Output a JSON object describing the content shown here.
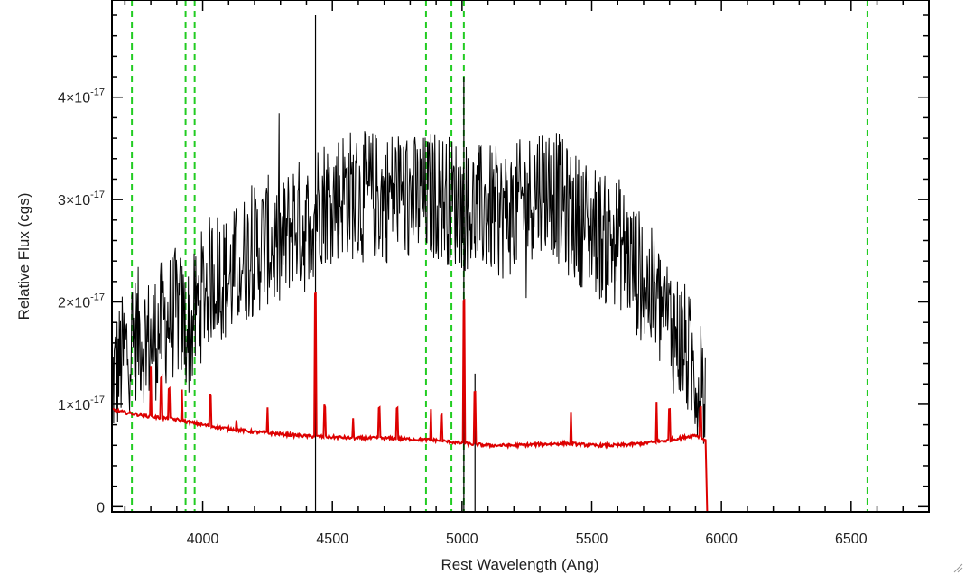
{
  "chart_data": {
    "type": "line",
    "xlabel": "Rest Wavelength (Ang)",
    "ylabel": "Relative Flux (cgs)",
    "xlim": [
      3650,
      6800
    ],
    "ylim": [
      -0.05,
      4.95
    ],
    "y_unit_exponent": -17,
    "x_ticks": [
      4000,
      4500,
      5000,
      5500,
      6000,
      6500
    ],
    "y_ticks": [
      {
        "value": 0,
        "mantissa": "0",
        "exponent": ""
      },
      {
        "value": 1,
        "mantissa": "1×10",
        "exponent": "-17"
      },
      {
        "value": 2,
        "mantissa": "2×10",
        "exponent": "-17"
      },
      {
        "value": 3,
        "mantissa": "3×10",
        "exponent": "-17"
      },
      {
        "value": 4,
        "mantissa": "4×10",
        "exponent": "-17"
      }
    ],
    "vertical_lines_x": [
      3727,
      3934,
      3969,
      4861,
      4959,
      5007,
      6563
    ],
    "vertical_line_color": "#22cc22",
    "series": [
      {
        "color": "#000000",
        "noise_amplitude": 0.65,
        "x": [
          3650,
          3700,
          3750,
          3800,
          3850,
          3900,
          3950,
          4000,
          4050,
          4100,
          4150,
          4200,
          4250,
          4300,
          4350,
          4400,
          4450,
          4500,
          4550,
          4600,
          4650,
          4700,
          4750,
          4800,
          4850,
          4900,
          4950,
          5000,
          5050,
          5100,
          5150,
          5200,
          5250,
          5300,
          5350,
          5400,
          5450,
          5500,
          5550,
          5600,
          5650,
          5700,
          5750,
          5800,
          5850,
          5900,
          5940
        ],
        "y": [
          1.2,
          1.5,
          1.7,
          1.6,
          1.8,
          1.9,
          1.7,
          2.1,
          2.3,
          2.2,
          2.4,
          2.5,
          2.6,
          2.5,
          2.8,
          2.7,
          3.0,
          3.0,
          3.1,
          3.0,
          3.05,
          3.0,
          3.1,
          3.0,
          3.0,
          3.05,
          3.0,
          2.95,
          2.9,
          2.9,
          2.85,
          2.9,
          3.0,
          3.15,
          3.1,
          2.9,
          2.8,
          2.75,
          2.6,
          2.6,
          2.4,
          2.2,
          2.0,
          1.8,
          1.6,
          1.3,
          1.1
        ]
      },
      {
        "color": "#dd0000",
        "x": [
          3650,
          3700,
          3800,
          3900,
          4000,
          4100,
          4200,
          4300,
          4400,
          4500,
          4600,
          4700,
          4800,
          4900,
          5000,
          5100,
          5200,
          5300,
          5400,
          5500,
          5600,
          5700,
          5800,
          5900,
          5940,
          5945,
          6800
        ],
        "y": [
          0.95,
          0.92,
          0.88,
          0.85,
          0.8,
          0.76,
          0.73,
          0.71,
          0.69,
          0.68,
          0.67,
          0.67,
          0.66,
          0.65,
          0.62,
          0.6,
          0.6,
          0.61,
          0.62,
          0.6,
          0.6,
          0.62,
          0.65,
          0.7,
          0.65,
          -0.05,
          -0.05
        ],
        "emission_lines": [
          [
            3800,
            0.5
          ],
          [
            3840,
            0.4
          ],
          [
            3870,
            0.3
          ],
          [
            3920,
            0.3
          ],
          [
            4030,
            0.3
          ],
          [
            4130,
            0.1
          ],
          [
            4250,
            0.25
          ],
          [
            4435,
            1.4
          ],
          [
            4470,
            0.3
          ],
          [
            4580,
            0.2
          ],
          [
            4680,
            0.3
          ],
          [
            4750,
            0.3
          ],
          [
            4880,
            0.3
          ],
          [
            4920,
            0.25
          ],
          [
            5007,
            1.4
          ],
          [
            5050,
            0.5
          ],
          [
            5420,
            0.3
          ],
          [
            5750,
            0.4
          ],
          [
            5800,
            0.3
          ],
          [
            5920,
            0.3
          ]
        ]
      }
    ]
  }
}
